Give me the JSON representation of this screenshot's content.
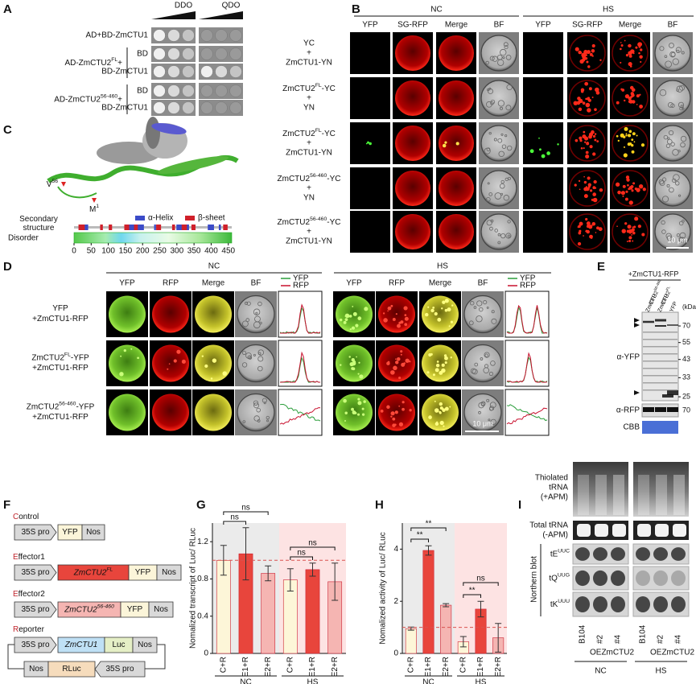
{
  "panel_labels": [
    "A",
    "B",
    "C",
    "D",
    "E",
    "F",
    "G",
    "H",
    "I"
  ],
  "a": {
    "conditions": [
      "DDO",
      "QDO"
    ],
    "rows": [
      "AD+BD-ZmCTU1",
      "BD",
      "BD-ZmCTU1",
      "BD",
      "BD-ZmCTU1"
    ],
    "groups": [
      [
        "AD-ZmCTU2",
        {
          "sup": "FL"
        },
        "+"
      ],
      [
        "AD-ZmCTU2",
        {
          "sup": "56-460"
        },
        "+"
      ]
    ]
  },
  "b": {
    "conditions": [
      "NC",
      "HS"
    ],
    "columns": [
      "YFP",
      "SG-RFP",
      "Merge",
      "BF"
    ],
    "rows": [
      [
        "YC",
        "+",
        "ZmCTU1-YN"
      ],
      [
        [
          "ZmCTU2",
          {
            "sup": "FL"
          },
          "-YC"
        ],
        "+",
        "YN"
      ],
      [
        [
          "ZmCTU2",
          {
            "sup": "FL"
          },
          "-YC"
        ],
        "+",
        "ZmCTU1-YN"
      ],
      [
        [
          "ZmCTU2",
          {
            "sup": "56-460"
          },
          "-YC"
        ],
        "+",
        "YN"
      ],
      [
        [
          "ZmCTU2",
          {
            "sup": "56-460"
          },
          "-YC"
        ],
        "+",
        "ZmCTU1-YN"
      ]
    ],
    "scale_bar": "10 μm"
  },
  "c": {
    "residues": [
      [
        "V",
        {
          "sup": "56"
        }
      ],
      [
        "M",
        {
          "sup": "1"
        }
      ]
    ],
    "secondary_structure_label": [
      "Secondary",
      "structure"
    ],
    "legend": [
      "α-Helix",
      "β-sheet"
    ],
    "disorder_label": "Disorder",
    "xlim": [
      0,
      460
    ],
    "xticks": [
      0,
      50,
      100,
      150,
      200,
      250,
      300,
      350,
      400,
      450
    ]
  },
  "d": {
    "conditions": [
      "NC",
      "HS"
    ],
    "columns": [
      "YFP",
      "RFP",
      "Merge",
      "BF"
    ],
    "profile_legend": [
      "YFP",
      "RFP"
    ],
    "rows": [
      [
        "YFP",
        "+ZmCTU1-RFP"
      ],
      [
        [
          "ZmCTU2",
          {
            "sup": "FL"
          },
          "-YFP"
        ],
        "+ZmCTU1-RFP"
      ],
      [
        [
          "ZmCTU2",
          {
            "sup": "56-460"
          },
          "-YFP"
        ],
        "+ZmCTU1-RFP"
      ]
    ],
    "scale_bar": "10 μm"
  },
  "e": {
    "title": "+ZmCTU1-RFP",
    "lanes": [
      [
        [
          "ZmCTU2",
          {
            "sup": "56-460"
          }
        ],
        "-YFP"
      ],
      [
        [
          "ZmCTU2",
          {
            "sup": "FL"
          }
        ],
        "-YFP"
      ],
      [
        "YFP"
      ]
    ],
    "unit": "(kDa)",
    "ladder": [
      70,
      55,
      43,
      33,
      25
    ],
    "rfp_ladder": 70,
    "antibodies": [
      "α-YFP",
      "α-RFP"
    ],
    "stain": "CBB"
  },
  "f": {
    "constructs": [
      {
        "name": [
          "C",
          "ontrol"
        ],
        "parts": [
          "35S pro",
          "YFP",
          "Nos"
        ]
      },
      {
        "name": [
          "E",
          "ffector1"
        ],
        "parts": [
          "35S pro",
          [
            "ZmCTU2",
            {
              "sup": "FL"
            }
          ],
          "YFP",
          "Nos"
        ]
      },
      {
        "name": [
          "E",
          "ffector2"
        ],
        "parts": [
          "35S pro",
          [
            "ZmCTU2",
            {
              "sup": "56-460"
            }
          ],
          "YFP",
          "Nos"
        ]
      },
      {
        "name": [
          "R",
          "eporter"
        ],
        "parts": [
          "35S pro",
          "ZmCTU1",
          "Luc",
          "Nos"
        ],
        "parts2": [
          "Nos",
          "RLuc",
          "35S pro"
        ]
      }
    ]
  },
  "g": {
    "type": "bar",
    "ylabel": "Nomalized transcript of Luc/ RLuc",
    "categories": [
      "C+R",
      "E1+R",
      "E2+R",
      "C+R",
      "E1+R",
      "E2+R"
    ],
    "groups": [
      "NC",
      "HS"
    ],
    "values": [
      1.0,
      1.07,
      0.86,
      0.79,
      0.9,
      0.77
    ],
    "errors": [
      0.16,
      0.28,
      0.08,
      0.12,
      0.07,
      0.2
    ],
    "colors": [
      "#fdf6d8",
      "#e8453c",
      "#f5b5b2",
      "#fdf6d8",
      "#e8453c",
      "#f5b5b2"
    ],
    "group_colors": [
      "#ebebeb",
      "#fde3e3"
    ],
    "ylim": [
      0,
      1.4
    ],
    "yticks": [
      0,
      0.4,
      0.8,
      1.2
    ],
    "reference_line": 1,
    "annotations": [
      "ns",
      "ns",
      "ns",
      "ns"
    ]
  },
  "h": {
    "type": "bar",
    "ylabel": "Nomalized activity of Luc/ RLuc",
    "categories": [
      "C+R",
      "E1+R",
      "E2+R",
      "C+R",
      "E1+R",
      "E2+R"
    ],
    "groups": [
      "NC",
      "HS"
    ],
    "values": [
      0.95,
      3.95,
      1.85,
      0.45,
      1.7,
      0.6
    ],
    "errors": [
      0.06,
      0.18,
      0.06,
      0.2,
      0.3,
      0.55
    ],
    "colors": [
      "#fdf6d8",
      "#e8453c",
      "#f5b5b2",
      "#fdf6d8",
      "#e8453c",
      "#f5b5b2"
    ],
    "group_colors": [
      "#ebebeb",
      "#fde3e3"
    ],
    "ylim": [
      0,
      5
    ],
    "yticks": [
      0,
      2,
      4
    ],
    "reference_line": 1,
    "annotations": [
      "**",
      "**",
      "**",
      "ns"
    ]
  },
  "i": {
    "rows": [
      [
        "Thiolated",
        "tRNA",
        "(+APM)"
      ],
      [
        "Total tRNA",
        "(-APM)"
      ]
    ],
    "probes": [
      [
        "tE",
        {
          "sup": "UUC"
        }
      ],
      [
        "tQ",
        {
          "sup": "UUG"
        }
      ],
      [
        "tK",
        {
          "sup": "UUU"
        }
      ]
    ],
    "blot_label": "Northern blot",
    "lanes": [
      "B104",
      "#2",
      "#4",
      "B104",
      "#2",
      "#4"
    ],
    "line_label": "OEZmCTU2",
    "conditions": [
      "NC",
      "HS"
    ]
  }
}
